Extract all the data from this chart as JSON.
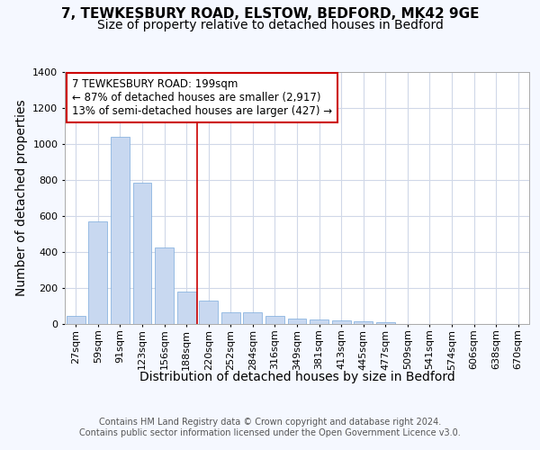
{
  "title_line1": "7, TEWKESBURY ROAD, ELSTOW, BEDFORD, MK42 9GE",
  "title_line2": "Size of property relative to detached houses in Bedford",
  "xlabel": "Distribution of detached houses by size in Bedford",
  "ylabel": "Number of detached properties",
  "categories": [
    "27sqm",
    "59sqm",
    "91sqm",
    "123sqm",
    "156sqm",
    "188sqm",
    "220sqm",
    "252sqm",
    "284sqm",
    "316sqm",
    "349sqm",
    "381sqm",
    "413sqm",
    "445sqm",
    "477sqm",
    "509sqm",
    "541sqm",
    "574sqm",
    "606sqm",
    "638sqm",
    "670sqm"
  ],
  "values": [
    47,
    572,
    1040,
    785,
    425,
    180,
    128,
    65,
    65,
    47,
    30,
    27,
    22,
    15,
    10,
    0,
    0,
    0,
    0,
    0,
    0
  ],
  "bar_color": "#c8d8f0",
  "bar_edge_color": "#7aaadc",
  "vline_x": 5.5,
  "vline_color": "#cc0000",
  "annotation_line1": "7 TEWKESBURY ROAD: 199sqm",
  "annotation_line2": "← 87% of detached houses are smaller (2,917)",
  "annotation_line3": "13% of semi-detached houses are larger (427) →",
  "annotation_box_edgecolor": "#cc0000",
  "ylim": [
    0,
    1400
  ],
  "yticks": [
    0,
    200,
    400,
    600,
    800,
    1000,
    1200,
    1400
  ],
  "footer_line1": "Contains HM Land Registry data © Crown copyright and database right 2024.",
  "footer_line2": "Contains public sector information licensed under the Open Government Licence v3.0.",
  "bg_color": "#f5f8ff",
  "plot_bg_color": "#ffffff",
  "grid_color": "#d0d8e8",
  "title_fontsize": 11,
  "subtitle_fontsize": 10,
  "axis_label_fontsize": 10,
  "tick_fontsize": 8,
  "annot_fontsize": 8.5,
  "footer_fontsize": 7
}
